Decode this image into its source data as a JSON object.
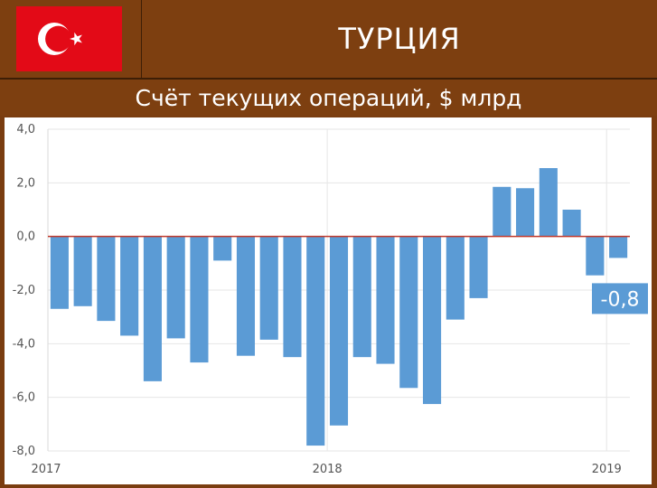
{
  "header": {
    "country": "ТУРЦИЯ",
    "flag_icon": "turkey-flag-icon"
  },
  "subtitle": "Счёт текущих операций, $ млрд",
  "colors": {
    "background": "#7d3f10",
    "bar": "#5b9bd5",
    "zero_line": "#c0392b",
    "flag_red": "#e30a17",
    "callout_bg": "#5b9bd5"
  },
  "chart_data": {
    "type": "bar",
    "title": "Счёт текущих операций, $ млрд",
    "xlabel": "",
    "ylabel": "",
    "ylim": [
      -8.0,
      4.0
    ],
    "y_ticks": [
      "4,0",
      "2,0",
      "0,0",
      "-2,0",
      "-4,0",
      "-6,0",
      "-8,0"
    ],
    "y_tick_values": [
      4,
      2,
      0,
      -2,
      -4,
      -6,
      -8
    ],
    "x_tick_labels": [
      {
        "label": "2017",
        "index": 0
      },
      {
        "label": "2018",
        "index": 12
      },
      {
        "label": "2019",
        "index": 24
      }
    ],
    "grid": true,
    "values": [
      -2.7,
      -2.6,
      -3.15,
      -3.7,
      -5.4,
      -3.8,
      -4.7,
      -0.9,
      -4.45,
      -3.85,
      -4.5,
      -7.8,
      -7.05,
      -4.5,
      -4.75,
      -5.65,
      -6.25,
      -3.1,
      -2.3,
      1.85,
      1.8,
      2.55,
      1.0,
      -1.45,
      -0.8
    ],
    "annotation": {
      "text": "-0,8",
      "bar_index": 24
    }
  }
}
